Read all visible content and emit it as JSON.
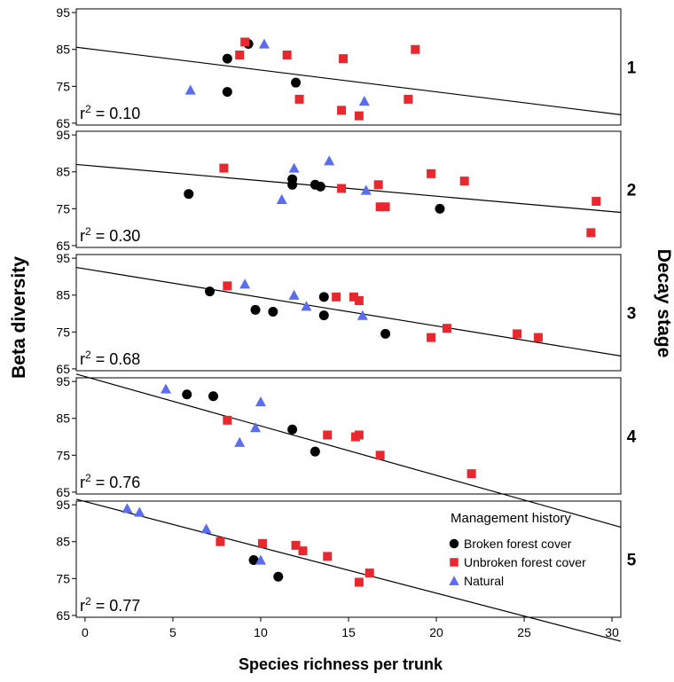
{
  "chart_data": {
    "type": "scatter",
    "xlabel": "Species richness per trunk",
    "ylabel": "Beta diversity",
    "right_label": "Decay stage",
    "xlim": [
      -0.5,
      30.5
    ],
    "x_ticks": [
      0,
      5,
      10,
      15,
      20,
      25,
      30
    ],
    "ylim": [
      64.5,
      96
    ],
    "y_ticks": [
      65,
      75,
      85,
      95
    ],
    "grid": false,
    "legend": {
      "title": "Management history",
      "placement": "top-right of panel 5",
      "entries": [
        {
          "name": "Broken forest cover",
          "color": "#000000",
          "shape": "circle"
        },
        {
          "name": "Unbroken forest cover",
          "color": "#e8282f",
          "shape": "square"
        },
        {
          "name": "Natural",
          "color": "#5a6cf0",
          "shape": "triangle"
        }
      ]
    },
    "panels": [
      {
        "label": "1",
        "r2_prefix": "r",
        "r2_sup": "2",
        "r2_value": " = 0.10",
        "fit": {
          "x0": -0.5,
          "y0": 85.6,
          "x1": 30.5,
          "y1": 67.3
        },
        "series": [
          {
            "name": "Broken forest cover",
            "x": [
              8.1,
              8.1,
              9.3,
              12.0
            ],
            "y": [
              82.5,
              73.5,
              86.5,
              76.0
            ]
          },
          {
            "name": "Unbroken forest cover",
            "x": [
              8.8,
              9.1,
              11.5,
              12.2,
              14.6,
              14.7,
              15.6,
              18.4,
              18.8
            ],
            "y": [
              83.5,
              87.0,
              83.5,
              71.5,
              68.5,
              82.5,
              67.0,
              71.5,
              85.0
            ]
          },
          {
            "name": "Natural",
            "x": [
              6.0,
              10.2,
              15.9
            ],
            "y": [
              74.0,
              86.5,
              71.0
            ]
          }
        ]
      },
      {
        "label": "2",
        "r2_prefix": "r",
        "r2_sup": "2",
        "r2_value": " = 0.30",
        "fit": {
          "x0": -0.5,
          "y0": 87.0,
          "x1": 30.5,
          "y1": 74.0
        },
        "series": [
          {
            "name": "Broken forest cover",
            "x": [
              5.9,
              11.8,
              11.8,
              13.1,
              13.4,
              20.2
            ],
            "y": [
              79.0,
              83.0,
              81.5,
              81.5,
              81.0,
              75.0
            ]
          },
          {
            "name": "Unbroken forest cover",
            "x": [
              7.9,
              14.6,
              16.7,
              16.8,
              17.1,
              19.7,
              21.6,
              28.8,
              29.1
            ],
            "y": [
              86.0,
              80.5,
              81.5,
              75.5,
              75.5,
              84.5,
              82.5,
              68.5,
              77.0
            ]
          },
          {
            "name": "Natural",
            "x": [
              11.2,
              11.9,
              13.9,
              16.0
            ],
            "y": [
              77.5,
              86.0,
              88.0,
              80.0
            ]
          }
        ]
      },
      {
        "label": "3",
        "r2_prefix": "r",
        "r2_sup": "2",
        "r2_value": " = 0.68",
        "fit": {
          "x0": -0.5,
          "y0": 92.5,
          "x1": 30.5,
          "y1": 68.5
        },
        "series": [
          {
            "name": "Broken forest cover",
            "x": [
              7.1,
              9.7,
              10.7,
              13.6,
              13.6,
              17.1
            ],
            "y": [
              86.0,
              81.0,
              80.5,
              84.5,
              79.5,
              74.5
            ]
          },
          {
            "name": "Unbroken forest cover",
            "x": [
              8.1,
              14.3,
              15.3,
              15.6,
              19.7,
              20.6,
              24.6,
              25.8
            ],
            "y": [
              87.5,
              84.5,
              84.5,
              83.5,
              73.5,
              76.0,
              74.5,
              73.5
            ]
          },
          {
            "name": "Natural",
            "x": [
              9.1,
              11.9,
              12.6,
              15.8
            ],
            "y": [
              88.0,
              85.0,
              82.0,
              79.5
            ]
          }
        ]
      },
      {
        "label": "4",
        "r2_prefix": "r",
        "r2_sup": "2",
        "r2_value": " = 0.76",
        "fit": {
          "x0": -0.5,
          "y0": 97.0,
          "x1": 30.5,
          "y1": 55.5
        },
        "series": [
          {
            "name": "Broken forest cover",
            "x": [
              5.8,
              7.3,
              11.8,
              13.1
            ],
            "y": [
              91.5,
              91.0,
              82.0,
              76.0
            ]
          },
          {
            "name": "Unbroken forest cover",
            "x": [
              8.1,
              13.8,
              15.4,
              15.6,
              16.8,
              22.0
            ],
            "y": [
              84.5,
              80.5,
              80.0,
              80.5,
              75.0,
              70.0
            ]
          },
          {
            "name": "Natural",
            "x": [
              4.6,
              8.8,
              9.7,
              10.0
            ],
            "y": [
              93.0,
              78.5,
              82.5,
              89.5
            ]
          }
        ]
      },
      {
        "label": "5",
        "r2_prefix": "r",
        "r2_sup": "2",
        "r2_value": " = 0.77",
        "fit": {
          "x0": -0.5,
          "y0": 96.5,
          "x1": 30.5,
          "y1": 58.0
        },
        "series": [
          {
            "name": "Broken forest cover",
            "x": [
              9.6,
              11.0
            ],
            "y": [
              80.0,
              75.5
            ]
          },
          {
            "name": "Unbroken forest cover",
            "x": [
              7.7,
              10.1,
              12.0,
              12.4,
              13.8,
              15.6,
              16.2
            ],
            "y": [
              85.0,
              84.5,
              84.0,
              82.5,
              81.0,
              74.0,
              76.5
            ]
          },
          {
            "name": "Natural",
            "x": [
              2.4,
              3.1,
              6.9,
              10.0
            ],
            "y": [
              94.0,
              93.0,
              88.5,
              80.0
            ]
          }
        ]
      }
    ]
  }
}
